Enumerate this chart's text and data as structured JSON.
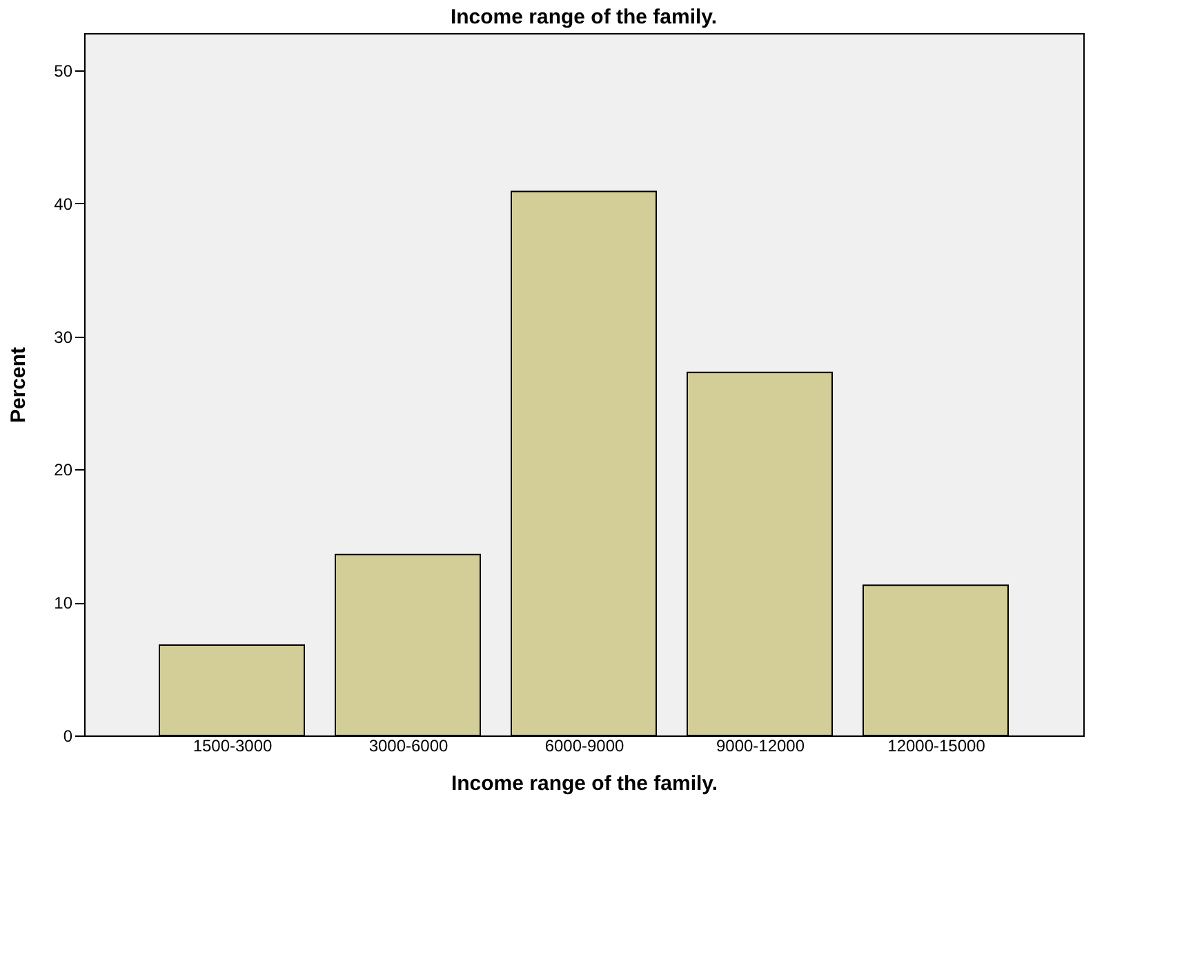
{
  "chart_data": {
    "type": "bar",
    "title": "Income range of the family.",
    "xlabel": "Income range of the family.",
    "ylabel": "Percent",
    "categories": [
      "1500-3000",
      "3000-6000",
      "6000-9000",
      "9000-12000",
      "12000-15000"
    ],
    "values": [
      6.8,
      13.6,
      40.9,
      27.3,
      11.3
    ],
    "color": "#d3ce97",
    "ylim": [
      0,
      52.8
    ],
    "yticks": [
      0,
      10,
      20,
      30,
      40,
      50
    ],
    "grid": false
  }
}
